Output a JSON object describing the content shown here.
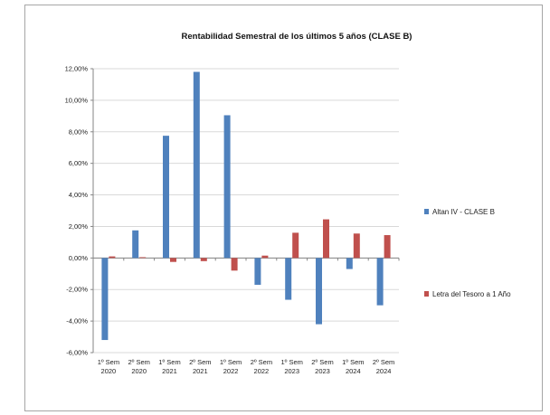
{
  "chart_data": {
    "type": "bar",
    "title": "Rentabilidad Semestral de los últimos 5 años (CLASE B)",
    "xlabel": "",
    "ylabel": "",
    "categories": [
      [
        "1º Sem",
        "2020"
      ],
      [
        "2º Sem",
        "2020"
      ],
      [
        "1º Sem",
        "2021"
      ],
      [
        "2º Sem",
        "2021"
      ],
      [
        "1º Sem",
        "2022"
      ],
      [
        "2º Sem",
        "2022"
      ],
      [
        "1º Sem",
        "2023"
      ],
      [
        "2º Sem",
        "2023"
      ],
      [
        "1º Sem",
        "2024"
      ],
      [
        "2º Sem",
        "2024"
      ]
    ],
    "series": [
      {
        "name": "Altan IV - CLASE B",
        "color": "#4f81bd",
        "values": [
          -5.2,
          1.75,
          7.75,
          11.8,
          9.05,
          -1.7,
          -2.65,
          -4.2,
          -0.7,
          -3.0
        ]
      },
      {
        "name": "Letra del Tesoro a 1 Año",
        "color": "#c0504d",
        "values": [
          0.1,
          0.05,
          -0.25,
          -0.2,
          -0.8,
          0.15,
          1.6,
          2.45,
          1.55,
          1.45
        ]
      }
    ],
    "ylim": [
      -6,
      12
    ],
    "yticks": [
      12,
      10,
      8,
      6,
      4,
      2,
      0,
      -2,
      -4,
      -6
    ],
    "ytick_labels": [
      "12,00%",
      "10,00%",
      "8,00%",
      "6,00%",
      "4,00%",
      "2,00%",
      "0,00%",
      "-2,00%",
      "-4,00%",
      "-6,00%"
    ],
    "grid": true,
    "legend_position": "right"
  }
}
